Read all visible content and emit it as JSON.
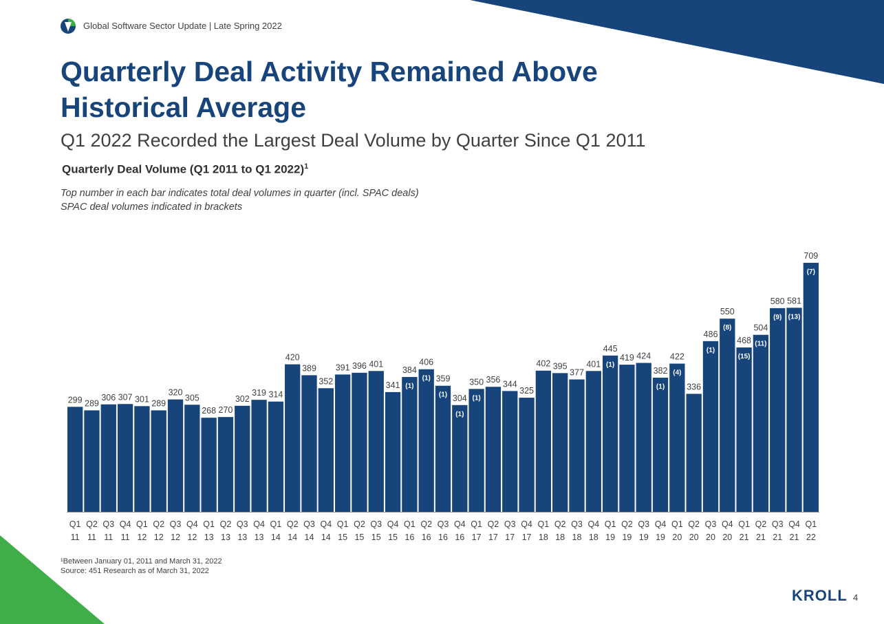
{
  "header": {
    "text": "Global Software Sector Update | Late Spring 2022"
  },
  "title_line1": "Quarterly Deal Activity Remained Above",
  "title_line2": "Historical Average",
  "subtitle": "Q1 2022 Recorded the Largest Deal Volume by Quarter Since Q1 2011",
  "chart_heading": "Quarterly Deal Volume (Q1 2011 to Q1 2022)",
  "chart_heading_sup": "1",
  "notes": [
    "Top number in each bar indicates total deal volumes in quarter (incl. SPAC deals)",
    "SPAC deal volumes indicated in brackets"
  ],
  "footnotes": [
    "¹Between January 01, 2011 and March 31, 2022",
    "Source: 451 Research as of March 31, 2022"
  ],
  "brand": "KROLL",
  "page_number": "4",
  "colors": {
    "bar": "#17457b",
    "accent_green": "#3fae49",
    "text": "#404040"
  },
  "chart_data": {
    "type": "bar",
    "categories": [
      [
        "Q1",
        "11"
      ],
      [
        "Q2",
        "11"
      ],
      [
        "Q3",
        "11"
      ],
      [
        "Q4",
        "11"
      ],
      [
        "Q1",
        "12"
      ],
      [
        "Q2",
        "12"
      ],
      [
        "Q3",
        "12"
      ],
      [
        "Q4",
        "12"
      ],
      [
        "Q1",
        "13"
      ],
      [
        "Q2",
        "13"
      ],
      [
        "Q3",
        "13"
      ],
      [
        "Q4",
        "13"
      ],
      [
        "Q1",
        "14"
      ],
      [
        "Q2",
        "14"
      ],
      [
        "Q3",
        "14"
      ],
      [
        "Q4",
        "14"
      ],
      [
        "Q1",
        "15"
      ],
      [
        "Q2",
        "15"
      ],
      [
        "Q3",
        "15"
      ],
      [
        "Q4",
        "15"
      ],
      [
        "Q1",
        "16"
      ],
      [
        "Q2",
        "16"
      ],
      [
        "Q3",
        "16"
      ],
      [
        "Q4",
        "16"
      ],
      [
        "Q1",
        "17"
      ],
      [
        "Q2",
        "17"
      ],
      [
        "Q3",
        "17"
      ],
      [
        "Q4",
        "17"
      ],
      [
        "Q1",
        "18"
      ],
      [
        "Q2",
        "18"
      ],
      [
        "Q3",
        "18"
      ],
      [
        "Q4",
        "18"
      ],
      [
        "Q1",
        "19"
      ],
      [
        "Q2",
        "19"
      ],
      [
        "Q3",
        "19"
      ],
      [
        "Q4",
        "19"
      ],
      [
        "Q1",
        "20"
      ],
      [
        "Q2",
        "20"
      ],
      [
        "Q3",
        "20"
      ],
      [
        "Q4",
        "20"
      ],
      [
        "Q1",
        "21"
      ],
      [
        "Q2",
        "21"
      ],
      [
        "Q3",
        "21"
      ],
      [
        "Q4",
        "21"
      ],
      [
        "Q1",
        "22"
      ]
    ],
    "values": [
      299,
      289,
      306,
      307,
      301,
      289,
      320,
      305,
      268,
      270,
      302,
      319,
      314,
      420,
      389,
      352,
      391,
      396,
      401,
      341,
      384,
      406,
      359,
      304,
      350,
      356,
      344,
      325,
      402,
      395,
      377,
      401,
      445,
      419,
      424,
      382,
      422,
      336,
      486,
      550,
      468,
      504,
      580,
      581,
      709
    ],
    "spac_labels": [
      null,
      null,
      null,
      null,
      null,
      null,
      null,
      null,
      null,
      null,
      null,
      null,
      null,
      null,
      null,
      null,
      null,
      null,
      null,
      null,
      "(1)",
      "(1)",
      "(1)",
      "(1)",
      "(1)",
      null,
      null,
      null,
      null,
      null,
      null,
      null,
      "(1)",
      null,
      null,
      "(1)",
      "(4)",
      null,
      "(1)",
      "(8)",
      "(15)",
      "(11)",
      "(9)",
      "(13)",
      "(7)"
    ],
    "ylim": [
      0,
      709
    ]
  }
}
